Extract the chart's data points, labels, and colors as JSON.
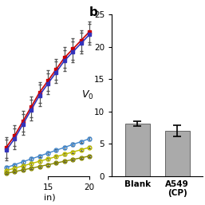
{
  "panel_b": {
    "categories": [
      "Blank",
      "A549\n(CP)"
    ],
    "values": [
      8.1,
      7.0
    ],
    "errors": [
      0.35,
      0.9
    ],
    "bar_color": "#aaaaaa",
    "ylim": [
      0,
      25
    ],
    "yticks": [
      0,
      5,
      10,
      15,
      20,
      25
    ],
    "ylabel": "$V_0$",
    "title": "b"
  },
  "panel_a": {
    "x": [
      10,
      11,
      12,
      13,
      14,
      15,
      16,
      17,
      18,
      19,
      20
    ],
    "upper_lines": [
      {
        "y": [
          5.0,
          7.0,
          9.5,
          12.0,
          14.5,
          16.5,
          18.5,
          20.5,
          22.0,
          23.5,
          25.0
        ],
        "color": "#cc0000",
        "marker": "s",
        "yerr": [
          1.8,
          1.8,
          1.8,
          1.8,
          1.8,
          1.8,
          1.8,
          1.8,
          1.8,
          1.8,
          1.8
        ]
      },
      {
        "y": [
          4.5,
          6.5,
          9.0,
          11.5,
          14.0,
          16.0,
          18.0,
          20.0,
          21.5,
          23.0,
          24.5
        ],
        "color": "#3333bb",
        "marker": "s",
        "yerr": [
          1.8,
          1.8,
          1.8,
          1.8,
          1.8,
          1.8,
          1.8,
          1.8,
          1.8,
          1.8,
          1.8
        ]
      }
    ],
    "lower_lines": [
      {
        "y": [
          1.5,
          2.0,
          2.5,
          3.0,
          3.5,
          4.0,
          4.5,
          5.0,
          5.5,
          6.0,
          6.5
        ],
        "color": "#4488cc",
        "marker": "o",
        "yerr": [
          0.25,
          0.25,
          0.25,
          0.25,
          0.25,
          0.25,
          0.25,
          0.25,
          0.25,
          0.25,
          0.25
        ]
      },
      {
        "y": [
          1.0,
          1.4,
          1.8,
          2.2,
          2.6,
          3.0,
          3.4,
          3.8,
          4.2,
          4.6,
          5.0
        ],
        "color": "#bbbb00",
        "marker": "o",
        "yerr": [
          0.2,
          0.2,
          0.2,
          0.2,
          0.2,
          0.2,
          0.2,
          0.2,
          0.2,
          0.2,
          0.2
        ]
      },
      {
        "y": [
          0.5,
          0.8,
          1.1,
          1.4,
          1.7,
          2.0,
          2.3,
          2.6,
          2.9,
          3.2,
          3.5
        ],
        "color": "#888800",
        "marker": "o",
        "yerr": [
          0.15,
          0.15,
          0.15,
          0.15,
          0.15,
          0.15,
          0.15,
          0.15,
          0.15,
          0.15,
          0.15
        ]
      }
    ],
    "xlabel": "in)",
    "xlim": [
      9.5,
      21
    ],
    "xticks": [
      15,
      20
    ],
    "ylim": [
      0,
      28
    ]
  }
}
